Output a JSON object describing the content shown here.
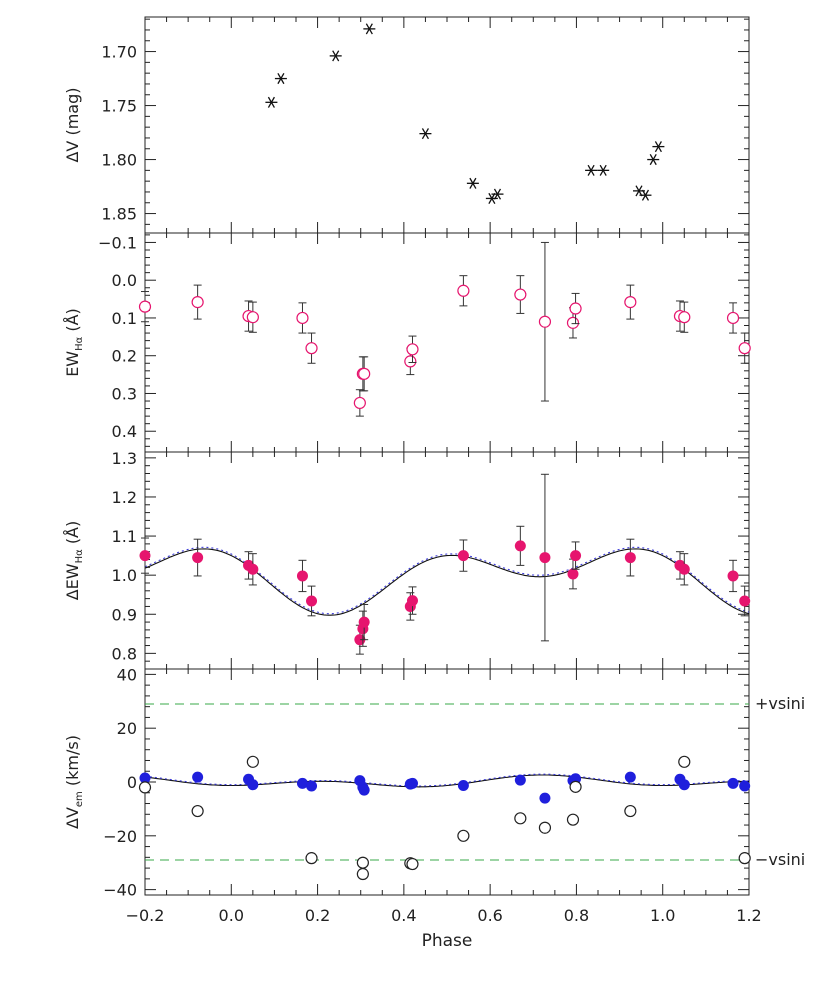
{
  "chart_data": {
    "type": "scatter",
    "x": {
      "label": "Phase",
      "range": [
        -0.2,
        1.2
      ],
      "ticks": [
        -0.2,
        0.0,
        0.2,
        0.4,
        0.6,
        0.8,
        1.0,
        1.2
      ],
      "tick_labels": [
        "−0.2",
        "0.0",
        "0.2",
        "0.4",
        "0.6",
        "0.8",
        "1.0",
        "1.2"
      ]
    },
    "panels": [
      {
        "id": "dV",
        "ylabel": "ΔV (mag)",
        "ylabel_sub": "",
        "ylabel_tail": "",
        "ylim": [
          1.668,
          1.868
        ],
        "y_inverted": true,
        "ticks": [
          1.7,
          1.75,
          1.8,
          1.85
        ],
        "tick_labels": [
          "1.70",
          "1.75",
          "1.80",
          "1.85"
        ],
        "series": [
          {
            "marker": "asterisk",
            "color": "#111111",
            "x": [
              0.093,
              0.115,
              0.242,
              0.32,
              0.45,
              0.56,
              0.604,
              0.617,
              0.834,
              0.862,
              0.945,
              0.96,
              0.978,
              0.99
            ],
            "y": [
              1.747,
              1.725,
              1.704,
              1.679,
              1.776,
              1.822,
              1.836,
              1.832,
              1.81,
              1.81,
              1.829,
              1.833,
              1.8,
              1.788
            ]
          }
        ]
      },
      {
        "id": "EW",
        "ylabel": "EW",
        "ylabel_sub": "Hα",
        "ylabel_tail": "(Å)",
        "ylim": [
          -0.125,
          0.455
        ],
        "y_inverted": true,
        "ticks": [
          -0.1,
          0.0,
          0.1,
          0.2,
          0.3,
          0.4
        ],
        "tick_labels": [
          "−0.1",
          "0.0",
          "0.1",
          "0.2",
          "0.3",
          "0.4"
        ],
        "series": [
          {
            "marker": "open-circle",
            "color": "#e6156e",
            "errorbars": true,
            "x": [
              -0.2,
              -0.078,
              0.04,
              0.05,
              0.165,
              0.186,
              0.298,
              0.305,
              0.308,
              0.415,
              0.42,
              0.538,
              0.67,
              0.727,
              0.792,
              0.798,
              0.925,
              1.04,
              1.05,
              1.163,
              1.19
            ],
            "y": [
              0.07,
              0.058,
              0.095,
              0.098,
              0.1,
              0.18,
              0.325,
              0.248,
              0.248,
              0.215,
              0.183,
              0.028,
              0.038,
              0.11,
              0.113,
              0.075,
              0.058,
              0.095,
              0.098,
              0.1,
              0.18
            ],
            "err": [
              0.04,
              0.045,
              0.04,
              0.04,
              0.04,
              0.04,
              0.035,
              0.045,
              0.045,
              0.035,
              0.035,
              0.04,
              0.05,
              0.21,
              0.04,
              0.04,
              0.045,
              0.04,
              0.04,
              0.04,
              0.04
            ]
          }
        ]
      },
      {
        "id": "dEW",
        "ylabel": "ΔEW",
        "ylabel_sub": "Hα",
        "ylabel_tail": "(Å)",
        "ylim": [
          0.76,
          1.315
        ],
        "y_inverted": false,
        "ticks": [
          0.8,
          0.9,
          1.0,
          1.1,
          1.2,
          1.3
        ],
        "tick_labels": [
          "0.8",
          "0.9",
          "1.0",
          "1.1",
          "1.2",
          "1.3"
        ],
        "series": [
          {
            "marker": "filled-circle",
            "color": "#e6156e",
            "errorbars": true,
            "x": [
              -0.2,
              -0.078,
              0.04,
              0.05,
              0.165,
              0.186,
              0.298,
              0.305,
              0.308,
              0.415,
              0.42,
              0.538,
              0.67,
              0.727,
              0.792,
              0.798,
              0.925,
              1.04,
              1.05,
              1.163,
              1.19
            ],
            "y": [
              1.05,
              1.045,
              1.025,
              1.015,
              0.998,
              0.934,
              0.835,
              0.863,
              0.88,
              0.92,
              0.935,
              1.05,
              1.075,
              1.045,
              1.003,
              1.05,
              1.045,
              1.025,
              1.015,
              0.998,
              0.934
            ],
            "err": [
              0.045,
              0.047,
              0.035,
              0.04,
              0.04,
              0.038,
              0.037,
              0.045,
              0.045,
              0.035,
              0.035,
              0.04,
              0.05,
              0.213,
              0.038,
              0.035,
              0.047,
              0.035,
              0.04,
              0.04,
              0.038
            ]
          }
        ],
        "model": {
          "mean": 1.0,
          "c1": 0.0,
          "s1": -0.05,
          "c2": 0.05,
          "s2": -0.018,
          "offset2": 0.004
        }
      },
      {
        "id": "dVem",
        "ylabel": "ΔV",
        "ylabel_sub": "em",
        "ylabel_tail": "(km/s)",
        "ylim": [
          -42,
          42
        ],
        "y_inverted": false,
        "ticks": [
          -40,
          -20,
          0,
          20,
          40
        ],
        "tick_labels": [
          "−40",
          "−20",
          "0",
          "20",
          "40"
        ],
        "series": [
          {
            "marker": "filled-circle",
            "color": "#1f1fdc",
            "errorbars": false,
            "x": [
              -0.2,
              -0.078,
              0.04,
              0.05,
              0.165,
              0.186,
              0.298,
              0.305,
              0.308,
              0.415,
              0.42,
              0.538,
              0.67,
              0.727,
              0.792,
              0.798,
              0.925,
              1.04,
              1.05,
              1.163,
              1.19
            ],
            "y": [
              1.5,
              1.8,
              1.0,
              -1.0,
              -0.5,
              -1.5,
              0.5,
              -2.0,
              -3.0,
              -0.8,
              -0.5,
              -1.3,
              0.7,
              -6.0,
              0.5,
              1.2,
              1.8,
              1.0,
              -1.0,
              -0.5,
              -1.5
            ]
          },
          {
            "marker": "open-circle",
            "color": "#222222",
            "errorbars": false,
            "x": [
              -0.2,
              -0.078,
              0.05,
              0.186,
              0.305,
              0.305,
              0.415,
              0.42,
              0.538,
              0.67,
              0.727,
              0.792,
              0.798,
              0.925,
              1.05,
              1.19
            ],
            "y": [
              -2.0,
              -10.8,
              7.5,
              -28.3,
              -30.0,
              -34.2,
              -30.2,
              -30.5,
              -20.0,
              -13.5,
              -17.0,
              -14.0,
              -1.8,
              -10.8,
              7.5,
              -28.3
            ]
          }
        ],
        "hlines": [
          29,
          -29
        ],
        "hline_color": "#3aa84a",
        "hline_labels": [
          "+vsini",
          "−vsini"
        ],
        "model": {
          "mean": 0.0,
          "c1": 0.0,
          "s1": -1.2,
          "c2": -1.3,
          "s2": 0.6,
          "offset2": 0.3
        }
      }
    ]
  }
}
